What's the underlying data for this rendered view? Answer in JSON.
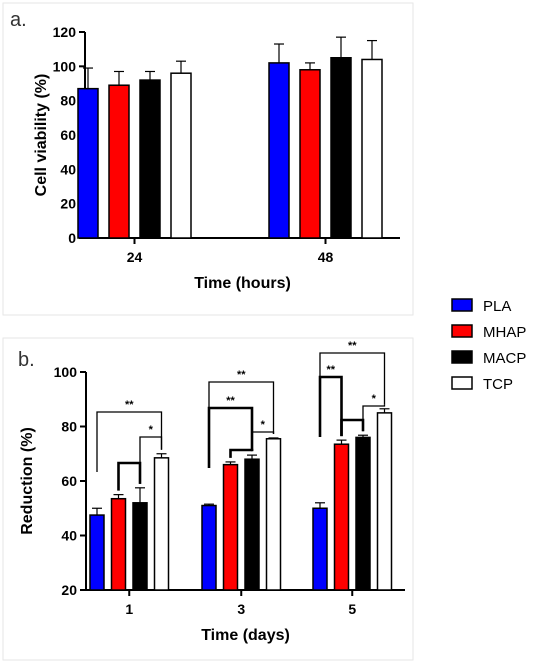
{
  "colors": {
    "PLA": "#0000ff",
    "MHAP": "#ff0000",
    "MACP": "#000000",
    "TCP": "#ffffff"
  },
  "legend": [
    "PLA",
    "MHAP",
    "MACP",
    "TCP"
  ],
  "chart_data": [
    {
      "panel": "a.",
      "type": "bar",
      "xlabel": "Time (hours)",
      "ylabel": "Cell viability (%)",
      "ylim": [
        0,
        120
      ],
      "yticks": [
        0,
        20,
        40,
        60,
        80,
        100,
        120
      ],
      "categories": [
        "24",
        "48"
      ],
      "series": [
        {
          "name": "PLA",
          "values": [
            87,
            102
          ],
          "errors": [
            12,
            11
          ]
        },
        {
          "name": "MHAP",
          "values": [
            89,
            98
          ],
          "errors": [
            8,
            4
          ]
        },
        {
          "name": "MACP",
          "values": [
            92,
            105
          ],
          "errors": [
            5,
            12
          ]
        },
        {
          "name": "TCP",
          "values": [
            96,
            104
          ],
          "errors": [
            7,
            11
          ]
        }
      ],
      "grid": false
    },
    {
      "panel": "b.",
      "type": "bar",
      "xlabel": "Time (days)",
      "ylabel": "Reduction (%)",
      "ylim": [
        20,
        100
      ],
      "yticks": [
        20,
        40,
        60,
        80,
        100
      ],
      "categories": [
        "1",
        "3",
        "5"
      ],
      "series": [
        {
          "name": "PLA",
          "values": [
            47.5,
            51,
            50
          ],
          "errors": [
            2.5,
            0.5,
            2
          ]
        },
        {
          "name": "MHAP",
          "values": [
            53.5,
            66,
            73.5
          ],
          "errors": [
            1.5,
            1,
            1.5
          ]
        },
        {
          "name": "MACP",
          "values": [
            52,
            68,
            76
          ],
          "errors": [
            5.5,
            1.5,
            0.8
          ]
        },
        {
          "name": "TCP",
          "values": [
            68.5,
            75.5,
            85
          ],
          "errors": [
            1.5,
            0.3,
            1.5
          ]
        }
      ],
      "annotations": [
        {
          "group": "1",
          "from": "PLA",
          "to": "TCP",
          "label": "**"
        },
        {
          "group": "1",
          "from": "MACP",
          "to": "TCP",
          "label": "*"
        },
        {
          "group": "1",
          "from": "MHAP",
          "to": "MACP",
          "label": ""
        },
        {
          "group": "3",
          "from": "PLA",
          "to": "TCP",
          "label": "**"
        },
        {
          "group": "3",
          "from": "PLA",
          "to": "MACP",
          "label": "**"
        },
        {
          "group": "3",
          "from": "MACP",
          "to": "TCP",
          "label": "*"
        },
        {
          "group": "3",
          "from": "MHAP",
          "to": "MACP",
          "label": ""
        },
        {
          "group": "5",
          "from": "PLA",
          "to": "TCP",
          "label": "**"
        },
        {
          "group": "5",
          "from": "PLA",
          "to": "MHAP",
          "label": "**"
        },
        {
          "group": "5",
          "from": "MACP",
          "to": "TCP",
          "label": "*"
        },
        {
          "group": "5",
          "from": "MHAP",
          "to": "MACP",
          "label": ""
        }
      ],
      "grid": false
    }
  ]
}
